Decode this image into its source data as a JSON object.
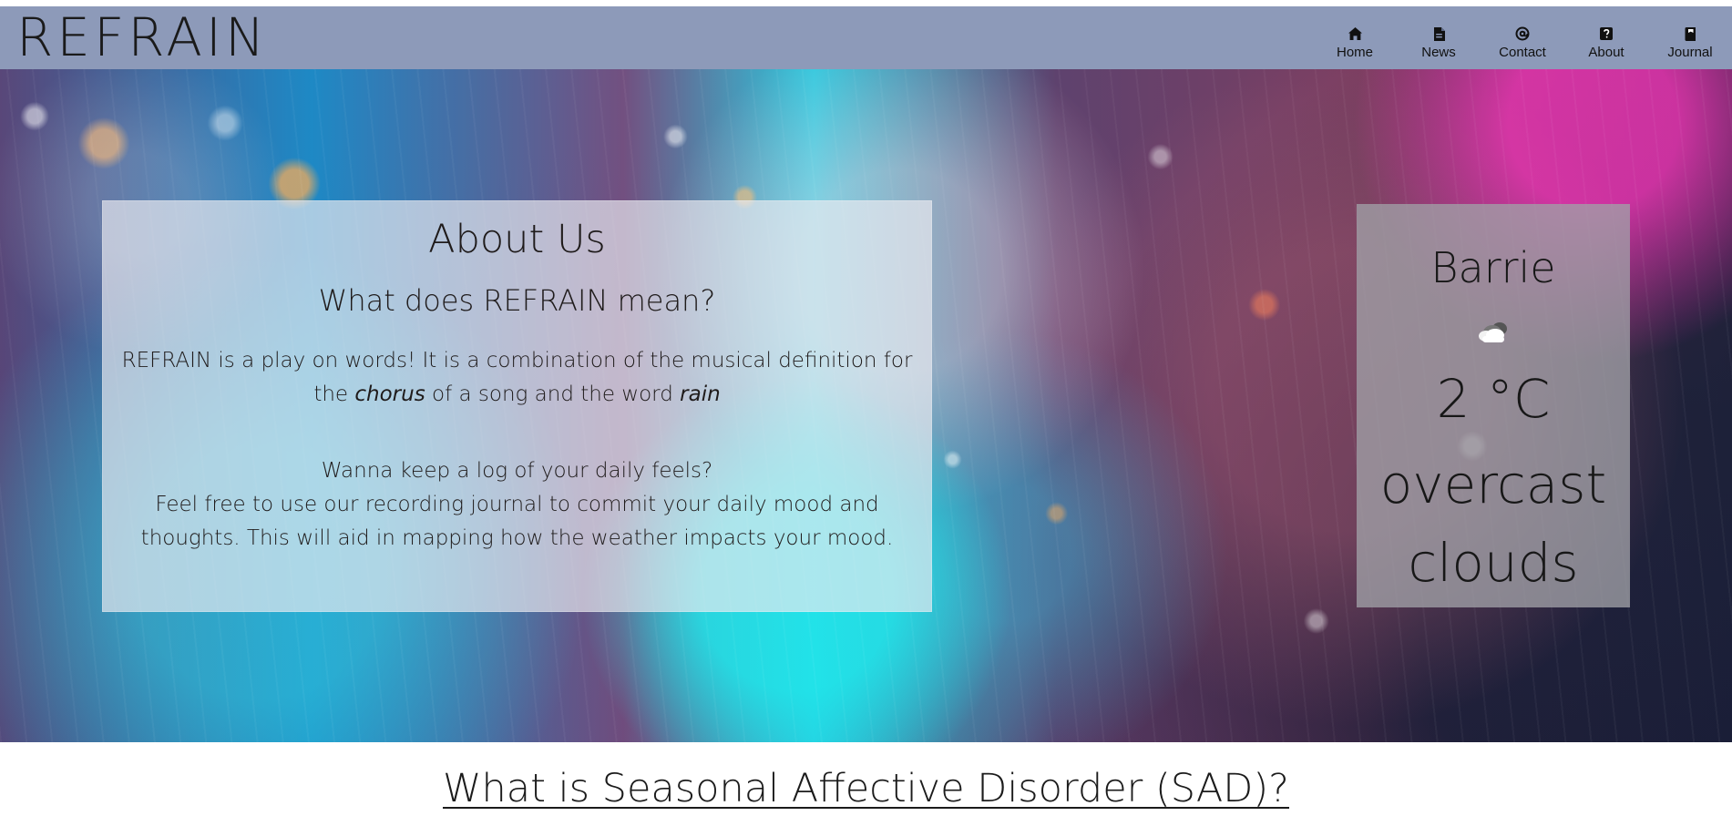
{
  "header": {
    "brand": "REFRAIN",
    "background": "#8d9ab9",
    "nav": [
      {
        "label": "Home",
        "icon": "home-icon"
      },
      {
        "label": "News",
        "icon": "document-icon"
      },
      {
        "label": "Contact",
        "icon": "at-icon"
      },
      {
        "label": "About",
        "icon": "question-icon"
      },
      {
        "label": "Journal",
        "icon": "book-icon"
      }
    ]
  },
  "hero": {
    "background_theme": "rainy glass bokeh",
    "about": {
      "title": "About Us",
      "subtitle": "What does REFRAIN mean?",
      "copy_before": "REFRAIN is a play on words! It is a combination of the musical definition for the ",
      "emphasis_1": "chorus",
      "copy_middle": " of a song and the word ",
      "emphasis_2": "rain",
      "question": "Wanna keep a log of your daily feels?",
      "journal_copy": "Feel free to use our recording journal to commit your daily mood and thoughts. This will aid in mapping how the weather impacts your mood."
    },
    "weather": {
      "city": "Barrie",
      "icon": "cloud-icon",
      "temperature": "2 °C",
      "description": "overcast clouds"
    }
  },
  "section": {
    "heading": "What is Seasonal Affective Disorder (SAD)?"
  }
}
